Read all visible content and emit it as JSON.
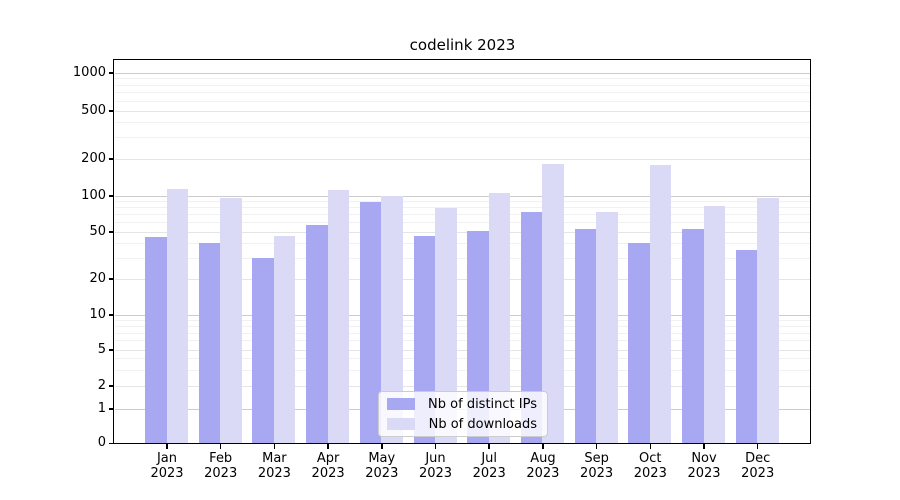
{
  "title": "codelink 2023",
  "colors": {
    "series_ips": "#a8a8f2",
    "series_downloads": "#dadaf7",
    "grid_major": "#cccccc",
    "grid_mid": "#e5e5e5",
    "grid_minor": "#f1f1f1",
    "axis": "#000000"
  },
  "legend": {
    "items": [
      {
        "label": "Nb of distinct IPs",
        "series": "ips"
      },
      {
        "label": "Nb of downloads",
        "series": "downloads"
      }
    ]
  },
  "chart_data": {
    "type": "bar",
    "title": "codelink 2023",
    "months": [
      "Jan",
      "Feb",
      "Mar",
      "Apr",
      "May",
      "Jun",
      "Jul",
      "Aug",
      "Sep",
      "Oct",
      "Nov",
      "Dec"
    ],
    "year_label": "2023",
    "series": [
      {
        "name": "Nb of distinct IPs",
        "color": "#a8a8f2",
        "values": [
          45,
          40,
          30,
          57,
          89,
          46,
          51,
          73,
          53,
          40,
          53,
          35
        ]
      },
      {
        "name": "Nb of downloads",
        "color": "#dadaf7",
        "values": [
          115,
          97,
          46,
          111,
          100,
          79,
          106,
          182,
          74,
          180,
          82,
          97
        ]
      }
    ],
    "xlabel": "",
    "ylabel": "",
    "yscale": "symlog",
    "ylim": [
      0,
      1000
    ],
    "y_ticks": [
      0,
      1,
      2,
      5,
      10,
      20,
      50,
      100,
      200,
      500,
      1000
    ],
    "grid": true,
    "legend_position": "lower center"
  }
}
